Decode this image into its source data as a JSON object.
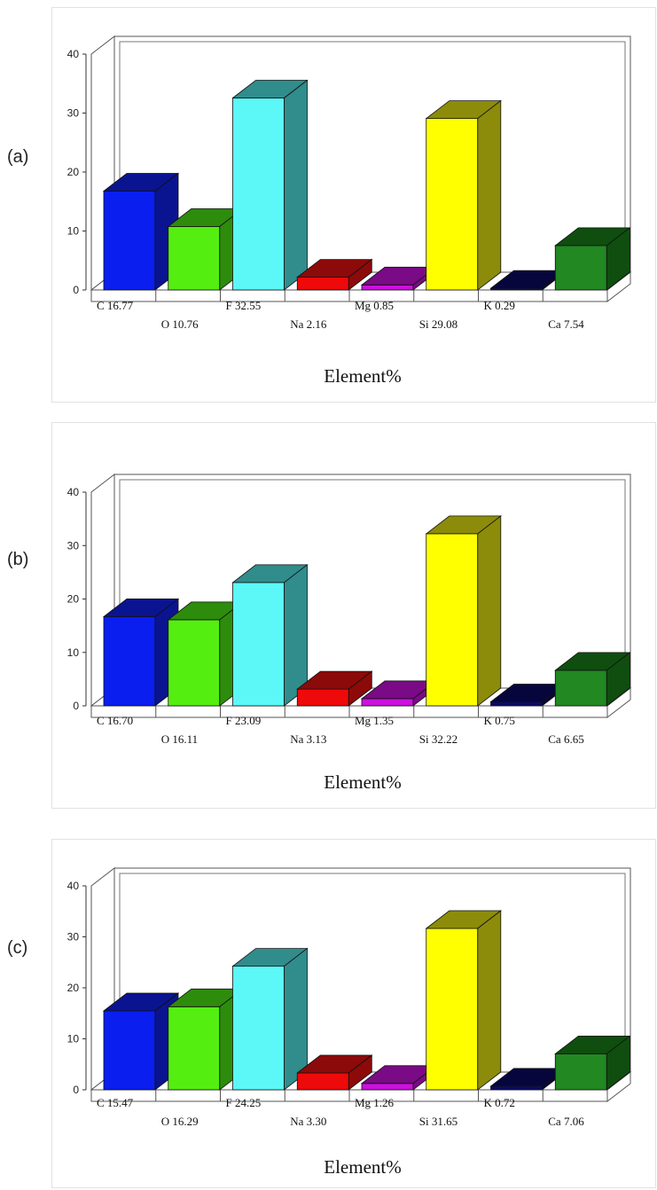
{
  "chart_data": [
    {
      "type": "bar",
      "panel_label": "(a)",
      "categories": [
        "C 16.77",
        "O 10.76",
        "F 32.55",
        "Na 2.16",
        "Mg 0.85",
        "Si 29.08",
        "K 0.29",
        "Ca 7.54"
      ],
      "values": [
        16.77,
        10.76,
        32.55,
        2.16,
        0.85,
        29.08,
        0.29,
        7.54
      ],
      "xlabel": "Element%",
      "ylabel": "",
      "ylim": [
        0,
        40
      ],
      "yticks": [
        "0",
        "10",
        "20",
        "30",
        "40"
      ],
      "grid": false,
      "style": "3d"
    },
    {
      "type": "bar",
      "panel_label": "(b)",
      "categories": [
        "C 16.70",
        "O 16.11",
        "F 23.09",
        "Na 3.13",
        "Mg 1.35",
        "Si 32.22",
        "K 0.75",
        "Ca 6.65"
      ],
      "values": [
        16.7,
        16.11,
        23.09,
        3.13,
        1.35,
        32.22,
        0.75,
        6.65
      ],
      "xlabel": "Element%",
      "ylabel": "",
      "ylim": [
        0,
        40
      ],
      "yticks": [
        "0",
        "10",
        "20",
        "30",
        "40"
      ],
      "grid": false,
      "style": "3d"
    },
    {
      "type": "bar",
      "panel_label": "(c)",
      "categories": [
        "C 15.47",
        "O 16.29",
        "F 24.25",
        "Na 3.30",
        "Mg 1.26",
        "Si 31.65",
        "K 0.72",
        "Ca 7.06"
      ],
      "values": [
        15.47,
        16.29,
        24.25,
        3.3,
        1.26,
        31.65,
        0.72,
        7.06
      ],
      "xlabel": "Element%",
      "ylabel": "",
      "ylim": [
        0,
        40
      ],
      "yticks": [
        "0",
        "10",
        "20",
        "30",
        "40"
      ],
      "grid": false,
      "style": "3d"
    }
  ],
  "colors": {
    "bars": [
      "#0a1ef0",
      "#55ee11",
      "#5cf8f8",
      "#ee0a0a",
      "#cc11dd",
      "#ffff00",
      "#0a0a6a",
      "#228822"
    ],
    "tops": [
      "#0a1490",
      "#2e8c0c",
      "#318c8c",
      "#8c0a0a",
      "#7a0a86",
      "#8c8c0a",
      "#06063c",
      "#0f4e0f"
    ],
    "sides": [
      "#0a1490",
      "#2e8c0c",
      "#318c8c",
      "#8c0a0a",
      "#7a0a86",
      "#8c8c0a",
      "#06063c",
      "#0f4e0f"
    ]
  }
}
